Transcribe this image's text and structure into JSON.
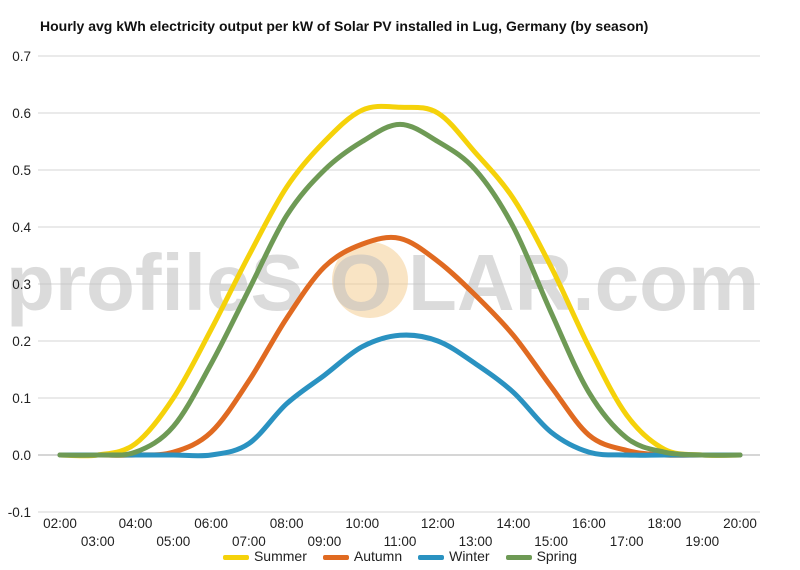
{
  "chart_data": {
    "type": "line",
    "title": "Hourly avg kWh electricity output per kW of Solar PV installed in Lug, Germany (by season)",
    "watermark": {
      "left": "profileS",
      "center": "O",
      "right": "LAR.com"
    },
    "x": [
      "02:00",
      "03:00",
      "04:00",
      "05:00",
      "06:00",
      "07:00",
      "08:00",
      "09:00",
      "10:00",
      "11:00",
      "12:00",
      "13:00",
      "14:00",
      "15:00",
      "16:00",
      "17:00",
      "18:00",
      "19:00",
      "20:00"
    ],
    "ylim": [
      -0.1,
      0.7
    ],
    "yticks": [
      -0.1,
      0.0,
      0.1,
      0.2,
      0.3,
      0.4,
      0.5,
      0.6,
      0.7
    ],
    "ytick_labels": [
      "-0.1",
      "0.0",
      "0.1",
      "0.2",
      "0.3",
      "0.4",
      "0.5",
      "0.6",
      "0.7"
    ],
    "grid": true,
    "legend_position": "bottom",
    "series": [
      {
        "name": "Summer",
        "color": "#f5d20a",
        "values": [
          0.0,
          0.0,
          0.02,
          0.1,
          0.22,
          0.35,
          0.47,
          0.55,
          0.605,
          0.61,
          0.6,
          0.53,
          0.45,
          0.33,
          0.19,
          0.07,
          0.01,
          0.0,
          0.0
        ]
      },
      {
        "name": "Autumn",
        "color": "#e06a21",
        "values": [
          0.0,
          0.0,
          0.0,
          0.005,
          0.04,
          0.13,
          0.24,
          0.33,
          0.37,
          0.38,
          0.34,
          0.28,
          0.21,
          0.12,
          0.035,
          0.008,
          0.0,
          0.0,
          0.0
        ]
      },
      {
        "name": "Winter",
        "color": "#2a92c1",
        "values": [
          0.0,
          0.0,
          0.0,
          0.0,
          0.0,
          0.02,
          0.09,
          0.14,
          0.19,
          0.21,
          0.2,
          0.16,
          0.11,
          0.04,
          0.005,
          0.0,
          0.0,
          0.0,
          0.0
        ]
      },
      {
        "name": "Spring",
        "color": "#6e9a55",
        "values": [
          0.0,
          0.0,
          0.005,
          0.05,
          0.16,
          0.29,
          0.42,
          0.5,
          0.55,
          0.58,
          0.55,
          0.5,
          0.4,
          0.25,
          0.11,
          0.03,
          0.005,
          0.0,
          0.0
        ]
      }
    ]
  }
}
